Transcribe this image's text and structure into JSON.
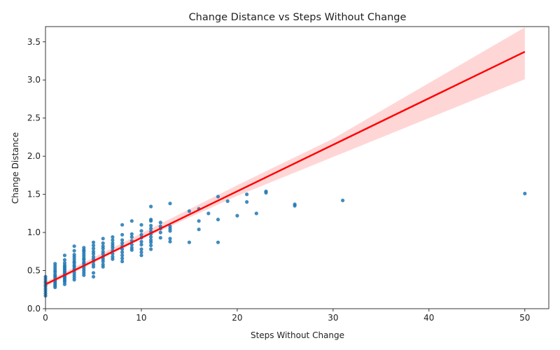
{
  "chart_data": {
    "type": "scatter",
    "title": "Change Distance vs Steps Without Change",
    "xlabel": "Steps Without Change",
    "ylabel": "Change Distance",
    "xlim": [
      0,
      52.5
    ],
    "ylim": [
      0,
      3.7
    ],
    "xticks": [
      "0",
      "10",
      "20",
      "30",
      "40",
      "50"
    ],
    "yticks": [
      "0.0",
      "0.5",
      "1.0",
      "1.5",
      "2.0",
      "2.5",
      "3.0",
      "3.5"
    ],
    "grid": false,
    "legend": "none",
    "colors": {
      "points": "#1f77b4",
      "regression": "#ff0000",
      "band": "#ffcccc"
    },
    "regression": {
      "x": [
        0,
        50
      ],
      "y": [
        0.32,
        3.37
      ]
    },
    "confidence_band": {
      "x": [
        0,
        10,
        20,
        30,
        40,
        50
      ],
      "lower": [
        0.29,
        0.91,
        1.48,
        1.99,
        2.5,
        3.01
      ],
      "upper": [
        0.35,
        0.99,
        1.62,
        2.23,
        2.96,
        3.69
      ]
    },
    "x": [
      0,
      0,
      0,
      0,
      0,
      0,
      0,
      0,
      0,
      0,
      1,
      1,
      1,
      1,
      1,
      1,
      1,
      1,
      1,
      1,
      1,
      1,
      1,
      1,
      2,
      2,
      2,
      2,
      2,
      2,
      2,
      2,
      2,
      2,
      2,
      2,
      2,
      2,
      2,
      2,
      3,
      3,
      3,
      3,
      3,
      3,
      3,
      3,
      3,
      3,
      3,
      3,
      3,
      3,
      3,
      4,
      4,
      4,
      4,
      4,
      4,
      4,
      4,
      4,
      4,
      4,
      4,
      4,
      4,
      5,
      5,
      5,
      5,
      5,
      5,
      5,
      5,
      5,
      5,
      5,
      5,
      6,
      6,
      6,
      6,
      6,
      6,
      6,
      6,
      6,
      6,
      6,
      7,
      7,
      7,
      7,
      7,
      7,
      7,
      7,
      7,
      8,
      8,
      8,
      8,
      8,
      8,
      8,
      8,
      8,
      8,
      9,
      9,
      9,
      9,
      9,
      9,
      9,
      10,
      10,
      10,
      10,
      10,
      10,
      10,
      10,
      10,
      11,
      11,
      11,
      11,
      11,
      11,
      11,
      11,
      11,
      11,
      11,
      11,
      12,
      12,
      12,
      12,
      12,
      13,
      13,
      13,
      13,
      13,
      13,
      15,
      15,
      16,
      16,
      16,
      17,
      18,
      18,
      18,
      19,
      20,
      21,
      21,
      22,
      23,
      23,
      26,
      26,
      31,
      50
    ],
    "y": [
      0.17,
      0.2,
      0.23,
      0.26,
      0.29,
      0.31,
      0.34,
      0.36,
      0.39,
      0.42,
      0.28,
      0.3,
      0.32,
      0.34,
      0.36,
      0.38,
      0.41,
      0.43,
      0.45,
      0.48,
      0.5,
      0.53,
      0.56,
      0.59,
      0.32,
      0.35,
      0.37,
      0.39,
      0.41,
      0.43,
      0.45,
      0.47,
      0.49,
      0.51,
      0.53,
      0.55,
      0.57,
      0.6,
      0.64,
      0.7,
      0.38,
      0.41,
      0.44,
      0.47,
      0.5,
      0.52,
      0.55,
      0.57,
      0.6,
      0.62,
      0.65,
      0.68,
      0.71,
      0.76,
      0.82,
      0.44,
      0.47,
      0.5,
      0.53,
      0.56,
      0.59,
      0.61,
      0.64,
      0.66,
      0.69,
      0.72,
      0.75,
      0.77,
      0.8,
      0.42,
      0.47,
      0.55,
      0.58,
      0.62,
      0.65,
      0.68,
      0.72,
      0.75,
      0.79,
      0.83,
      0.87,
      0.55,
      0.58,
      0.62,
      0.65,
      0.68,
      0.72,
      0.75,
      0.79,
      0.82,
      0.86,
      0.92,
      0.65,
      0.68,
      0.72,
      0.76,
      0.8,
      0.83,
      0.86,
      0.9,
      0.94,
      0.62,
      0.66,
      0.7,
      0.74,
      0.78,
      0.82,
      0.86,
      0.9,
      0.97,
      1.1,
      0.77,
      0.8,
      0.84,
      0.89,
      0.94,
      0.98,
      1.15,
      0.7,
      0.74,
      0.78,
      0.84,
      0.88,
      0.93,
      0.97,
      1.02,
      1.1,
      0.78,
      0.83,
      0.87,
      0.9,
      0.94,
      0.98,
      1.01,
      1.05,
      1.09,
      1.15,
      1.17,
      1.34,
      0.93,
      1.0,
      1.05,
      1.08,
      1.13,
      0.88,
      0.92,
      1.02,
      1.05,
      1.08,
      1.38,
      0.87,
      1.28,
      1.04,
      1.15,
      1.31,
      1.25,
      0.87,
      1.17,
      1.47,
      1.41,
      1.22,
      1.4,
      1.5,
      1.25,
      1.52,
      1.54,
      1.35,
      1.37,
      1.42,
      1.51
    ]
  }
}
